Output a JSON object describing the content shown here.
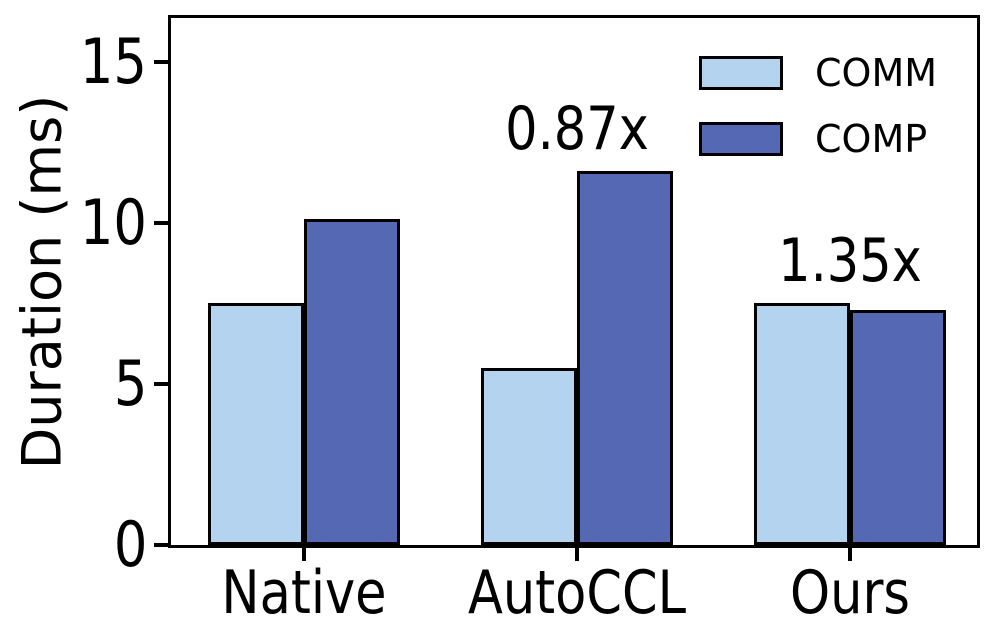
{
  "chart_data": {
    "type": "bar",
    "title": "",
    "xlabel": "",
    "ylabel": "Duration (ms)",
    "categories": [
      "Native",
      "AutoCCL",
      "Ours"
    ],
    "series": [
      {
        "name": "COMM",
        "color": "#b3d3ee",
        "values": [
          7.5,
          5.5,
          7.5
        ]
      },
      {
        "name": "COMP",
        "color": "#5568b4",
        "values": [
          10.1,
          11.6,
          7.3
        ]
      }
    ],
    "annotations": [
      {
        "category_index": 1,
        "text": "0.87x"
      },
      {
        "category_index": 2,
        "text": "1.35x"
      }
    ],
    "yticks": [
      0,
      5,
      10,
      15
    ],
    "ylim": [
      0,
      16.35
    ],
    "grid": false,
    "legend_position": "upper right",
    "bar_edge_color": "#000000",
    "axis_color": "#000000"
  }
}
